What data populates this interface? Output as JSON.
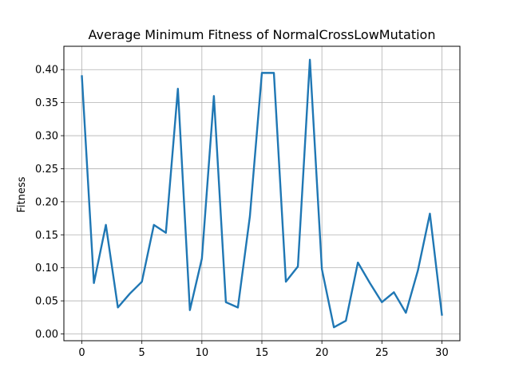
{
  "chart_data": {
    "type": "line",
    "title": "Average Minimum Fitness of NormalCrossLowMutation",
    "xlabel": "",
    "ylabel": "Fitness",
    "xlim": [
      -1.5,
      31.5
    ],
    "ylim": [
      -0.0103,
      0.4353
    ],
    "grid": true,
    "xticks": [
      0,
      5,
      10,
      15,
      20,
      25,
      30
    ],
    "xtick_labels": [
      "0",
      "5",
      "10",
      "15",
      "20",
      "25",
      "30"
    ],
    "yticks": [
      0.0,
      0.05,
      0.1,
      0.15,
      0.2,
      0.25,
      0.3,
      0.35,
      0.4
    ],
    "ytick_labels": [
      "0.00",
      "0.05",
      "0.10",
      "0.15",
      "0.20",
      "0.25",
      "0.30",
      "0.35",
      "0.40"
    ],
    "series": [
      {
        "color": "#1f77b4",
        "x": [
          0,
          1,
          2,
          3,
          4,
          5,
          6,
          7,
          8,
          9,
          10,
          11,
          12,
          13,
          14,
          15,
          16,
          17,
          18,
          19,
          20,
          21,
          22,
          23,
          24,
          25,
          26,
          27,
          28,
          29,
          30
        ],
        "y": [
          0.39,
          0.077,
          0.165,
          0.04,
          0.061,
          0.079,
          0.165,
          0.153,
          0.371,
          0.036,
          0.114,
          0.36,
          0.048,
          0.04,
          0.178,
          0.395,
          0.395,
          0.079,
          0.102,
          0.415,
          0.098,
          0.01,
          0.02,
          0.108,
          0.077,
          0.048,
          0.063,
          0.032,
          0.096,
          0.182,
          0.029
        ]
      }
    ]
  }
}
